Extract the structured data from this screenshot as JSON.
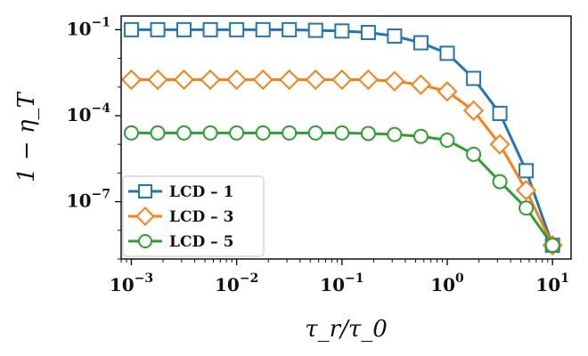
{
  "chart_data": {
    "type": "line",
    "title": "",
    "xlabel": "τ_r/τ_0",
    "ylabel": "1 − η_T",
    "xscale": "log",
    "yscale": "log",
    "xlim": [
      0.0008,
      15
    ],
    "ylim": [
      1e-09,
      0.3
    ],
    "x": [
      0.001,
      0.00178,
      0.00316,
      0.00562,
      0.01,
      0.0178,
      0.0316,
      0.0562,
      0.1,
      0.178,
      0.316,
      0.562,
      1.0,
      1.78,
      3.16,
      5.62,
      10.0
    ],
    "series": [
      {
        "name": "LCD – 1",
        "color": "#1f77b4",
        "marker": "square",
        "values": [
          0.1,
          0.1,
          0.1,
          0.1,
          0.1,
          0.1,
          0.1,
          0.095,
          0.09,
          0.08,
          0.06,
          0.035,
          0.015,
          0.002,
          0.00012,
          1.2e-06,
          3e-09
        ]
      },
      {
        "name": "LCD – 3",
        "color": "#ff7f0e",
        "marker": "diamond",
        "values": [
          0.0018,
          0.0018,
          0.0018,
          0.0018,
          0.0018,
          0.0018,
          0.0018,
          0.0018,
          0.0018,
          0.0018,
          0.0016,
          0.0012,
          0.0007,
          0.00015,
          1e-05,
          2.5e-07,
          3e-09
        ]
      },
      {
        "name": "LCD – 5",
        "color": "#2ca02c",
        "marker": "circle",
        "values": [
          2.5e-05,
          2.5e-05,
          2.5e-05,
          2.5e-05,
          2.5e-05,
          2.5e-05,
          2.5e-05,
          2.5e-05,
          2.5e-05,
          2.4e-05,
          2.2e-05,
          1.9e-05,
          1.4e-05,
          4.5e-06,
          5e-07,
          6e-08,
          3e-09
        ]
      }
    ],
    "x_ticks": [
      {
        "value": 0.001,
        "label": "10",
        "exp": "−3"
      },
      {
        "value": 0.01,
        "label": "10",
        "exp": "−2"
      },
      {
        "value": 0.1,
        "label": "10",
        "exp": "−1"
      },
      {
        "value": 1,
        "label": "10",
        "exp": "0"
      },
      {
        "value": 10,
        "label": "10",
        "exp": "1"
      }
    ],
    "y_ticks": [
      {
        "value": 0.1,
        "label": "10",
        "exp": "−1"
      },
      {
        "value": 0.0001,
        "label": "10",
        "exp": "−4"
      },
      {
        "value": 1e-07,
        "label": "10",
        "exp": "−7"
      }
    ],
    "legend_position": "bottom-left"
  }
}
